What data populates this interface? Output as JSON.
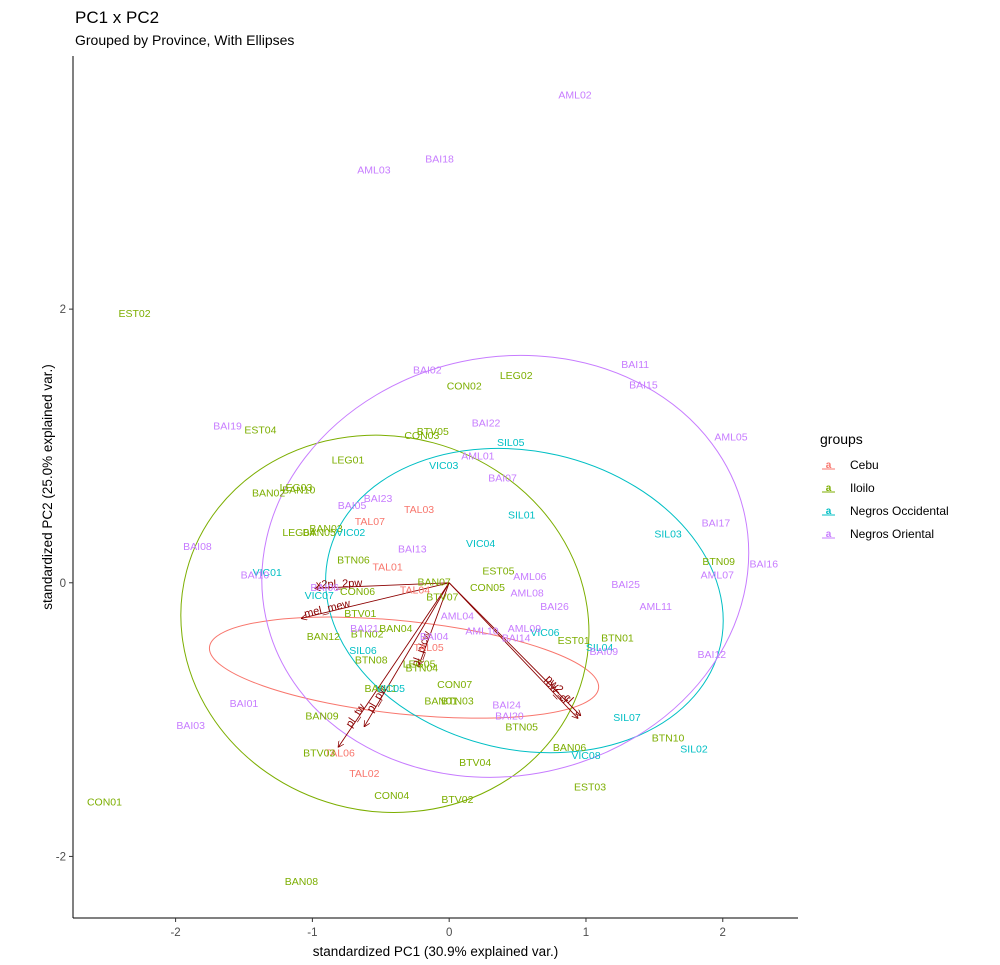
{
  "chart_data": {
    "type": "scatter",
    "title": "PC1 x PC2",
    "subtitle": "Grouped by Province, With Ellipses",
    "xlabel": "standardized PC1 (30.9% explained var.)",
    "ylabel": "standardized PC2 (25.0% explained var.)",
    "xlim": [
      -2.75,
      2.55
    ],
    "ylim": [
      -2.45,
      3.85
    ],
    "xticks": [
      -2,
      -1,
      0,
      1,
      2
    ],
    "yticks": [
      -2,
      0,
      2
    ],
    "x_tick_labels": [
      "-2",
      "-1",
      "0",
      "1",
      "2"
    ],
    "y_tick_labels": [
      "-2",
      "0",
      "2"
    ],
    "grid": false,
    "legend": {
      "title": "groups",
      "placement": "right",
      "entries": [
        {
          "name": "Cebu",
          "color": "#F8766D"
        },
        {
          "name": "Iloilo",
          "color": "#7CAE00"
        },
        {
          "name": "Negros Occidental",
          "color": "#00BFC4"
        },
        {
          "name": "Negros Oriental",
          "color": "#C77CFF"
        }
      ]
    },
    "series": [
      {
        "name": "Cebu",
        "color": "#F8766D",
        "ellipse": {
          "cx": -0.33,
          "cy": -0.62,
          "rx": 0.34,
          "ry": 1.43,
          "angle": 84
        },
        "points": [
          {
            "label": "TAL07",
            "x": -0.58,
            "y": 0.45
          },
          {
            "label": "TAL03",
            "x": -0.22,
            "y": 0.54
          },
          {
            "label": "TAL01",
            "x": -0.45,
            "y": 0.12
          },
          {
            "label": "TAL04",
            "x": -0.25,
            "y": -0.05
          },
          {
            "label": "TAL05",
            "x": -0.15,
            "y": -0.47
          },
          {
            "label": "TAL06",
            "x": -0.8,
            "y": -1.24
          },
          {
            "label": "TAL02",
            "x": -0.62,
            "y": -1.39
          }
        ]
      },
      {
        "name": "Iloilo",
        "color": "#7CAE00",
        "ellipse": {
          "cx": -0.47,
          "cy": -0.3,
          "rx": 1.37,
          "ry": 1.5,
          "angle": 75
        },
        "points": [
          {
            "label": "EST02",
            "x": -2.3,
            "y": 1.97
          },
          {
            "label": "LEG02",
            "x": 0.49,
            "y": 1.52
          },
          {
            "label": "CON02",
            "x": 0.11,
            "y": 1.44
          },
          {
            "label": "EST04",
            "x": -1.38,
            "y": 1.12
          },
          {
            "label": "BTV05",
            "x": -0.12,
            "y": 1.11
          },
          {
            "label": "CON03",
            "x": -0.2,
            "y": 1.08
          },
          {
            "label": "LEG01",
            "x": -0.74,
            "y": 0.9
          },
          {
            "label": "LEG03",
            "x": -1.12,
            "y": 0.7
          },
          {
            "label": "BAN10",
            "x": -1.1,
            "y": 0.68
          },
          {
            "label": "BAN02",
            "x": -1.32,
            "y": 0.66
          },
          {
            "label": "BAN03",
            "x": -0.9,
            "y": 0.4
          },
          {
            "label": "LEG04",
            "x": -1.1,
            "y": 0.37
          },
          {
            "label": "BAN05",
            "x": -0.95,
            "y": 0.37
          },
          {
            "label": "BTN06",
            "x": -0.7,
            "y": 0.17
          },
          {
            "label": "EST05",
            "x": 0.36,
            "y": 0.09
          },
          {
            "label": "BAN07",
            "x": -0.11,
            "y": 0.01
          },
          {
            "label": "CON05",
            "x": 0.28,
            "y": -0.03
          },
          {
            "label": "CON06",
            "x": -0.67,
            "y": -0.06
          },
          {
            "label": "BTV07",
            "x": -0.05,
            "y": -0.1
          },
          {
            "label": "BTV01",
            "x": -0.65,
            "y": -0.22
          },
          {
            "label": "BAN04",
            "x": -0.39,
            "y": -0.33
          },
          {
            "label": "BTN02",
            "x": -0.6,
            "y": -0.37
          },
          {
            "label": "BAN12",
            "x": -0.92,
            "y": -0.39
          },
          {
            "label": "EST01",
            "x": 0.91,
            "y": -0.42
          },
          {
            "label": "BTN01",
            "x": 1.23,
            "y": -0.4
          },
          {
            "label": "BTN08",
            "x": -0.57,
            "y": -0.56
          },
          {
            "label": "LEG05",
            "x": -0.22,
            "y": -0.59
          },
          {
            "label": "BTN04",
            "x": -0.2,
            "y": -0.62
          },
          {
            "label": "CON07",
            "x": 0.04,
            "y": -0.74
          },
          {
            "label": "BAN11",
            "x": -0.5,
            "y": -0.77
          },
          {
            "label": "BAN01",
            "x": -0.06,
            "y": -0.86
          },
          {
            "label": "BTN03",
            "x": 0.06,
            "y": -0.86
          },
          {
            "label": "BAN09",
            "x": -0.93,
            "y": -0.97
          },
          {
            "label": "BTN05",
            "x": 0.53,
            "y": -1.05
          },
          {
            "label": "BTN09",
            "x": 1.97,
            "y": 0.16
          },
          {
            "label": "BTN10",
            "x": 1.6,
            "y": -1.13
          },
          {
            "label": "BAN06",
            "x": 0.88,
            "y": -1.2
          },
          {
            "label": "BTV03",
            "x": -0.95,
            "y": -1.24
          },
          {
            "label": "BTV04",
            "x": 0.19,
            "y": -1.31
          },
          {
            "label": "EST03",
            "x": 1.03,
            "y": -1.49
          },
          {
            "label": "CON04",
            "x": -0.42,
            "y": -1.55
          },
          {
            "label": "BTV02",
            "x": 0.06,
            "y": -1.58
          },
          {
            "label": "CON01",
            "x": -2.52,
            "y": -1.6
          },
          {
            "label": "BAN08",
            "x": -1.08,
            "y": -2.18
          }
        ]
      },
      {
        "name": "Negros Occidental",
        "color": "#00BFC4",
        "ellipse": {
          "cx": 0.55,
          "cy": -0.13,
          "rx": 1.47,
          "ry": 1.09,
          "angle": -13
        },
        "points": [
          {
            "label": "SIL05",
            "x": 0.45,
            "y": 1.03
          },
          {
            "label": "VIC03",
            "x": -0.04,
            "y": 0.86
          },
          {
            "label": "SIL01",
            "x": 0.53,
            "y": 0.5
          },
          {
            "label": "VIC02",
            "x": -0.72,
            "y": 0.37
          },
          {
            "label": "SIL03",
            "x": 1.6,
            "y": 0.36
          },
          {
            "label": "VIC04",
            "x": 0.23,
            "y": 0.29
          },
          {
            "label": "VIC01",
            "x": -1.33,
            "y": 0.08
          },
          {
            "label": "VIC07",
            "x": -0.95,
            "y": -0.09
          },
          {
            "label": "VIC06",
            "x": 0.7,
            "y": -0.36
          },
          {
            "label": "SIL04",
            "x": 1.1,
            "y": -0.47
          },
          {
            "label": "SIL06",
            "x": -0.63,
            "y": -0.49
          },
          {
            "label": "VIC05",
            "x": -0.43,
            "y": -0.77
          },
          {
            "label": "SIL07",
            "x": 1.3,
            "y": -0.98
          },
          {
            "label": "VIC08",
            "x": 1.0,
            "y": -1.26
          },
          {
            "label": "SIL02",
            "x": 1.79,
            "y": -1.21
          }
        ]
      },
      {
        "name": "Negros Oriental",
        "color": "#C77CFF",
        "ellipse": {
          "cx": 0.41,
          "cy": 0.12,
          "rx": 1.53,
          "ry": 1.79,
          "angle": -78
        },
        "points": [
          {
            "label": "AML02",
            "x": 0.92,
            "y": 3.57
          },
          {
            "label": "BAI18",
            "x": -0.07,
            "y": 3.1
          },
          {
            "label": "AML03",
            "x": -0.55,
            "y": 3.02
          },
          {
            "label": "BAI02",
            "x": -0.16,
            "y": 1.56
          },
          {
            "label": "BAI11",
            "x": 1.36,
            "y": 1.6
          },
          {
            "label": "BAI15",
            "x": 1.42,
            "y": 1.45
          },
          {
            "label": "BAI19",
            "x": -1.62,
            "y": 1.15
          },
          {
            "label": "BAI22",
            "x": 0.27,
            "y": 1.17
          },
          {
            "label": "AML05",
            "x": 2.06,
            "y": 1.07
          },
          {
            "label": "AML01",
            "x": 0.21,
            "y": 0.93
          },
          {
            "label": "BAI07",
            "x": 0.39,
            "y": 0.77
          },
          {
            "label": "BAI23",
            "x": -0.52,
            "y": 0.62
          },
          {
            "label": "BAI05",
            "x": -0.71,
            "y": 0.57
          },
          {
            "label": "BAI17",
            "x": 1.95,
            "y": 0.44
          },
          {
            "label": "BAI13",
            "x": -0.27,
            "y": 0.25
          },
          {
            "label": "BAI08",
            "x": -1.84,
            "y": 0.27
          },
          {
            "label": "BAI16",
            "x": 2.3,
            "y": 0.14
          },
          {
            "label": "AML07",
            "x": 1.96,
            "y": 0.06
          },
          {
            "label": "BAI10",
            "x": -1.42,
            "y": 0.06
          },
          {
            "label": "AML06",
            "x": 0.59,
            "y": 0.05
          },
          {
            "label": "BAI25",
            "x": 1.29,
            "y": -0.01
          },
          {
            "label": "BAI06",
            "x": -0.91,
            "y": -0.03
          },
          {
            "label": "AML08",
            "x": 0.57,
            "y": -0.07
          },
          {
            "label": "BAI26",
            "x": 0.77,
            "y": -0.17
          },
          {
            "label": "AML11",
            "x": 1.51,
            "y": -0.17
          },
          {
            "label": "AML04",
            "x": 0.06,
            "y": -0.24
          },
          {
            "label": "BAI21",
            "x": -0.62,
            "y": -0.33
          },
          {
            "label": "AML10",
            "x": 0.24,
            "y": -0.35
          },
          {
            "label": "AML09",
            "x": 0.55,
            "y": -0.33
          },
          {
            "label": "BAI04",
            "x": -0.11,
            "y": -0.39
          },
          {
            "label": "BAI14",
            "x": 0.49,
            "y": -0.4
          },
          {
            "label": "BAI09",
            "x": 1.13,
            "y": -0.5
          },
          {
            "label": "BAI12",
            "x": 1.92,
            "y": -0.52
          },
          {
            "label": "BAI01",
            "x": -1.5,
            "y": -0.88
          },
          {
            "label": "BAI24",
            "x": 0.42,
            "y": -0.89
          },
          {
            "label": "BAI20",
            "x": 0.44,
            "y": -0.97
          },
          {
            "label": "BAI03",
            "x": -1.89,
            "y": -1.04
          }
        ]
      }
    ],
    "variables": [
      {
        "name": "x2pl_2pw",
        "x": -0.98,
        "y": -0.04
      },
      {
        "name": "mel_mew",
        "x": -1.08,
        "y": -0.26
      },
      {
        "name": "pl_tw",
        "x": -0.81,
        "y": -1.2
      },
      {
        "name": "pl_pw",
        "x": -0.62,
        "y": -1.05
      },
      {
        "name": "pl_plcw",
        "x": -0.22,
        "y": -0.6
      },
      {
        "name": "pw2_cl",
        "x": 0.96,
        "y": -0.97
      },
      {
        "name": "cw_cl",
        "x": 0.94,
        "y": -0.99
      }
    ]
  }
}
